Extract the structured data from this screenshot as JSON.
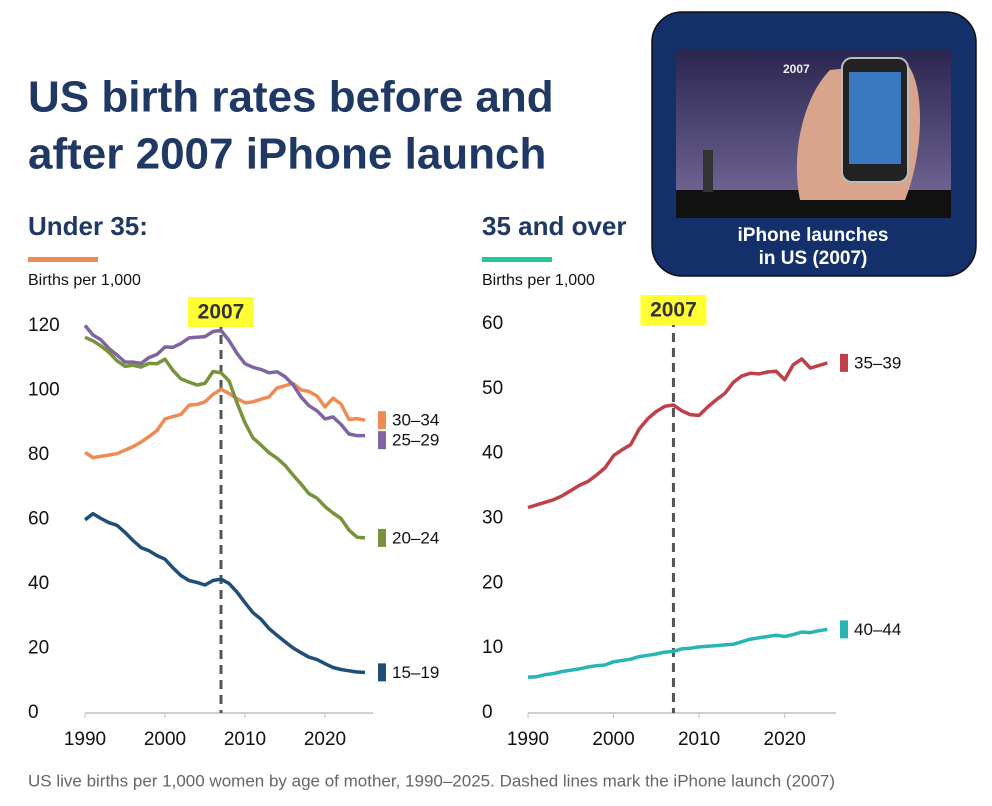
{
  "title": [
    "US birth rates before and",
    "after 2007 iPhone launch"
  ],
  "caption": "US live births per 1,000 women by age of mother, 1990–2025. Dashed lines mark the iPhone launch (2007)",
  "photo": {
    "text": "2007",
    "caption": [
      "iPhone launches",
      "in US (2007)"
    ]
  },
  "chart_data": [
    {
      "type": "line",
      "subtitle": "Under 35:",
      "accent": "#ef8a55",
      "y_label": "Births per 1,000",
      "x": [
        1990,
        1991,
        1992,
        1993,
        1994,
        1995,
        1996,
        1997,
        1998,
        1999,
        2000,
        2001,
        2002,
        2003,
        2004,
        2005,
        2006,
        2007,
        2008,
        2009,
        2010,
        2011,
        2012,
        2013,
        2014,
        2015,
        2016,
        2017,
        2018,
        2019,
        2020,
        2021,
        2022,
        2023,
        2024,
        2025
      ],
      "xlim": [
        1990,
        2026
      ],
      "xticks": [
        1990,
        2000,
        2010,
        2020
      ],
      "ylim": [
        0,
        120
      ],
      "yticks": [
        0,
        20,
        40,
        60,
        80,
        100,
        120
      ],
      "grid": false,
      "vline": 2007,
      "series": [
        {
          "name": "30–34",
          "color": "#f08a55",
          "values": [
            80.8,
            79.2,
            79.6,
            80.0,
            80.4,
            81.5,
            82.6,
            84.0,
            85.7,
            87.6,
            91.2,
            91.9,
            92.6,
            95.4,
            95.7,
            96.5,
            98.8,
            100.4,
            99.1,
            97.5,
            96.2,
            96.5,
            97.3,
            98.0,
            100.8,
            101.5,
            102.2,
            100.2,
            99.7,
            98.3,
            94.9,
            97.6,
            95.8,
            91.0,
            91.3,
            90.8
          ]
        },
        {
          "name": "25–29",
          "color": "#8064a2",
          "values": [
            120.2,
            117.2,
            115.7,
            113.0,
            111.0,
            108.8,
            108.8,
            108.4,
            110.2,
            111.2,
            113.5,
            113.4,
            114.6,
            116.3,
            116.5,
            116.7,
            118.3,
            118.6,
            115.5,
            111.5,
            108.3,
            107.2,
            106.5,
            105.5,
            105.8,
            104.3,
            101.8,
            98.0,
            95.3,
            93.7,
            91.2,
            91.8,
            89.5,
            86.5,
            86.0,
            86.0
          ]
        },
        {
          "name": "20–24",
          "color": "#77933c",
          "values": [
            116.5,
            115.4,
            113.8,
            111.8,
            109.2,
            107.5,
            107.8,
            107.3,
            108.4,
            108.3,
            109.7,
            106.2,
            103.6,
            102.6,
            101.7,
            102.2,
            105.9,
            105.5,
            103.0,
            96.2,
            90.0,
            85.3,
            83.1,
            80.7,
            79.0,
            76.8,
            73.8,
            71.0,
            68.0,
            66.6,
            64.0,
            62.0,
            60.3,
            56.7,
            54.5,
            54.3
          ]
        },
        {
          "name": "15–19",
          "color": "#1f4e79",
          "values": [
            59.9,
            61.8,
            60.3,
            59.0,
            58.2,
            56.0,
            53.5,
            51.3,
            50.3,
            48.8,
            47.7,
            45.0,
            42.6,
            41.1,
            40.5,
            39.7,
            41.1,
            41.5,
            40.2,
            37.5,
            34.2,
            31.1,
            29.1,
            26.2,
            24.1,
            22.1,
            20.2,
            18.7,
            17.3,
            16.6,
            15.3,
            14.1,
            13.5,
            13.1,
            12.7,
            12.6
          ]
        }
      ]
    },
    {
      "type": "line",
      "subtitle": "35 and over",
      "accent": "#1fc99a",
      "y_label": "Births per 1,000",
      "x": [
        1990,
        1991,
        1992,
        1993,
        1994,
        1995,
        1996,
        1997,
        1998,
        1999,
        2000,
        2001,
        2002,
        2003,
        2004,
        2005,
        2006,
        2007,
        2008,
        2009,
        2010,
        2011,
        2012,
        2013,
        2014,
        2015,
        2016,
        2017,
        2018,
        2019,
        2020,
        2021,
        2022,
        2023,
        2024,
        2025
      ],
      "xlim": [
        1990,
        2026
      ],
      "xticks": [
        1990,
        2000,
        2010,
        2020
      ],
      "ylim": [
        0,
        60
      ],
      "yticks": [
        0,
        10,
        20,
        30,
        40,
        50,
        60
      ],
      "grid": false,
      "vline": 2007,
      "series": [
        {
          "name": "35–39",
          "color": "#c0404a",
          "values": [
            31.7,
            32.1,
            32.5,
            32.9,
            33.5,
            34.3,
            35.1,
            35.7,
            36.7,
            37.8,
            39.7,
            40.6,
            41.4,
            43.8,
            45.4,
            46.5,
            47.3,
            47.5,
            46.6,
            46.0,
            45.9,
            47.2,
            48.3,
            49.3,
            51.0,
            52.0,
            52.4,
            52.3,
            52.6,
            52.7,
            51.4,
            53.7,
            54.6,
            53.2,
            53.6,
            54.0
          ]
        },
        {
          "name": "40–44",
          "color": "#2ab5b5",
          "values": [
            5.5,
            5.6,
            5.9,
            6.1,
            6.4,
            6.6,
            6.8,
            7.1,
            7.3,
            7.4,
            7.9,
            8.1,
            8.3,
            8.7,
            8.9,
            9.1,
            9.4,
            9.5,
            9.9,
            10.0,
            10.2,
            10.3,
            10.4,
            10.5,
            10.6,
            11.0,
            11.4,
            11.6,
            11.8,
            12.0,
            11.8,
            12.1,
            12.5,
            12.4,
            12.7,
            12.9
          ]
        }
      ]
    }
  ]
}
